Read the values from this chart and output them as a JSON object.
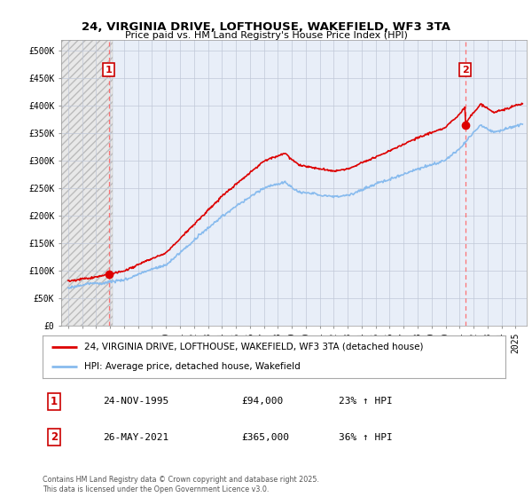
{
  "title_line1": "24, VIRGINIA DRIVE, LOFTHOUSE, WAKEFIELD, WF3 3TA",
  "title_line2": "Price paid vs. HM Land Registry's House Price Index (HPI)",
  "ylabel_ticks": [
    "£0",
    "£50K",
    "£100K",
    "£150K",
    "£200K",
    "£250K",
    "£300K",
    "£350K",
    "£400K",
    "£450K",
    "£500K"
  ],
  "ytick_values": [
    0,
    50000,
    100000,
    150000,
    200000,
    250000,
    300000,
    350000,
    400000,
    450000,
    500000
  ],
  "ylim": [
    0,
    520000
  ],
  "xlim_start": 1992.5,
  "xlim_end": 2025.8,
  "purchase1_year": 1995.9,
  "purchase1_price": 94000,
  "purchase2_year": 2021.4,
  "purchase2_price": 365000,
  "legend_line1": "24, VIRGINIA DRIVE, LOFTHOUSE, WAKEFIELD, WF3 3TA (detached house)",
  "legend_line2": "HPI: Average price, detached house, Wakefield",
  "annotation1_label": "1",
  "annotation1_date": "24-NOV-1995",
  "annotation1_price": "£94,000",
  "annotation1_hpi": "23% ↑ HPI",
  "annotation2_label": "2",
  "annotation2_date": "26-MAY-2021",
  "annotation2_price": "£365,000",
  "annotation2_hpi": "36% ↑ HPI",
  "footer": "Contains HM Land Registry data © Crown copyright and database right 2025.\nThis data is licensed under the Open Government Licence v3.0.",
  "red_line_color": "#dd0000",
  "blue_line_color": "#88bbee",
  "dot_color": "#dd0000",
  "box_color": "#cc0000",
  "hatch_facecolor": "#e8e8e8",
  "hatch_edgecolor": "#bbbbbb",
  "bg_color": "#e8eef8",
  "grid_color": "#c0c8d8"
}
